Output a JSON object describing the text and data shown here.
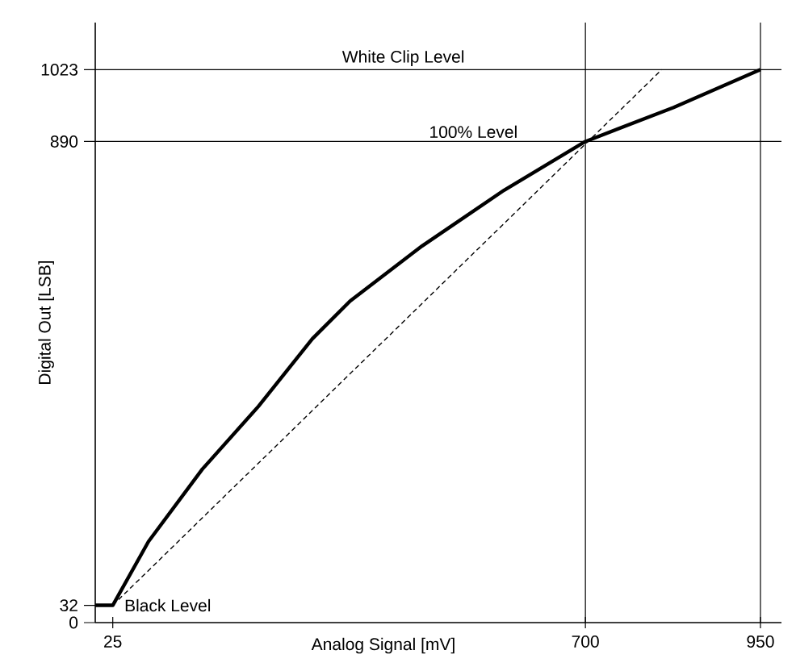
{
  "chart_data": {
    "type": "line",
    "xlabel": "Analog Signal [mV]",
    "ylabel": "Digital Out [LSB]",
    "xlim": [
      0,
      980
    ],
    "ylim": [
      0,
      1110
    ],
    "xticks": [
      25,
      700,
      950
    ],
    "yticks": [
      0,
      32,
      890,
      1023
    ],
    "grid": false,
    "marker": "none",
    "series": [
      {
        "color": "#000000",
        "line_style": "solid",
        "x": [
          0,
          25,
          76,
          153,
          233,
          310,
          364,
          467,
          584,
          700,
          826,
          950
        ],
        "values": [
          32,
          32,
          150,
          284,
          400,
          525,
          595,
          697,
          800,
          890,
          953,
          1023
        ]
      },
      {
        "color": "#000000",
        "line_style": "dashed",
        "x": [
          25,
          809
        ],
        "values": [
          32,
          1023
        ]
      }
    ],
    "ref_lines": [
      {
        "axis": "y",
        "value": 1023
      },
      {
        "axis": "y",
        "value": 890
      },
      {
        "axis": "x",
        "value": 700
      },
      {
        "axis": "x",
        "value": 950
      }
    ],
    "annotations": [
      {
        "text": "White Clip Level",
        "x": 440,
        "y": 1023
      },
      {
        "text": "100% Level",
        "x": 540,
        "y": 890
      },
      {
        "text": "Black Level",
        "x": 25,
        "y": 32
      }
    ]
  }
}
